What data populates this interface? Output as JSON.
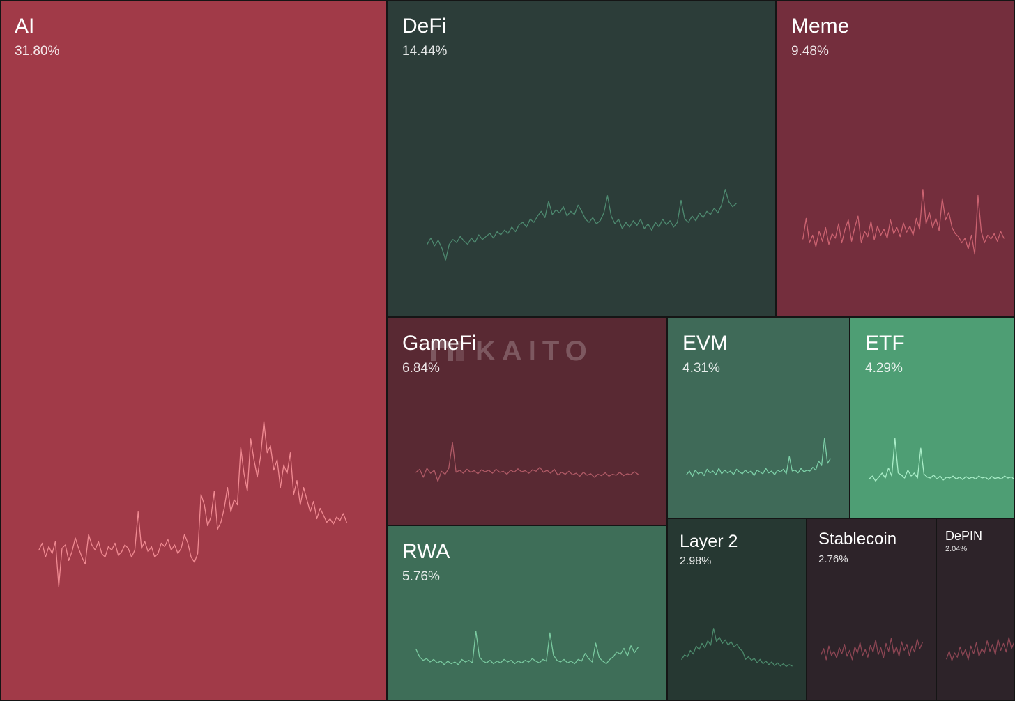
{
  "chart_data": {
    "type": "treemap",
    "title": "",
    "watermark": "KAITO",
    "series": [
      {
        "name": "AI",
        "percent": "31.80%",
        "value": 31.8,
        "trend": "down",
        "tile_color": "#a13a48",
        "line_color": "#f08a92",
        "sparkline": [
          0.26,
          0.3,
          0.22,
          0.28,
          0.24,
          0.31,
          0.05,
          0.27,
          0.29,
          0.2,
          0.25,
          0.33,
          0.27,
          0.22,
          0.18,
          0.35,
          0.29,
          0.26,
          0.31,
          0.24,
          0.22,
          0.28,
          0.26,
          0.3,
          0.23,
          0.25,
          0.29,
          0.27,
          0.22,
          0.26,
          0.48,
          0.27,
          0.31,
          0.25,
          0.28,
          0.22,
          0.24,
          0.3,
          0.28,
          0.32,
          0.26,
          0.29,
          0.24,
          0.27,
          0.35,
          0.3,
          0.22,
          0.19,
          0.24,
          0.58,
          0.52,
          0.4,
          0.45,
          0.6,
          0.38,
          0.42,
          0.5,
          0.62,
          0.48,
          0.55,
          0.52,
          0.85,
          0.7,
          0.6,
          0.9,
          0.78,
          0.68,
          0.8,
          1.0,
          0.82,
          0.86,
          0.72,
          0.78,
          0.62,
          0.75,
          0.7,
          0.82,
          0.58,
          0.66,
          0.52,
          0.62,
          0.55,
          0.48,
          0.54,
          0.44,
          0.5,
          0.46,
          0.42,
          0.44,
          0.41,
          0.45,
          0.43,
          0.47,
          0.42
        ]
      },
      {
        "name": "DeFi",
        "percent": "14.44%",
        "value": 14.44,
        "trend": "up",
        "tile_color": "#2c3d39",
        "line_color": "#4e8a70",
        "sparkline": [
          0.3,
          0.38,
          0.28,
          0.35,
          0.25,
          0.1,
          0.3,
          0.36,
          0.32,
          0.4,
          0.34,
          0.3,
          0.38,
          0.32,
          0.42,
          0.36,
          0.4,
          0.44,
          0.38,
          0.46,
          0.42,
          0.48,
          0.44,
          0.52,
          0.46,
          0.55,
          0.58,
          0.52,
          0.62,
          0.58,
          0.66,
          0.72,
          0.64,
          0.85,
          0.68,
          0.74,
          0.7,
          0.78,
          0.66,
          0.72,
          0.68,
          0.8,
          0.72,
          0.62,
          0.58,
          0.64,
          0.56,
          0.6,
          0.7,
          0.92,
          0.66,
          0.56,
          0.62,
          0.5,
          0.58,
          0.52,
          0.6,
          0.54,
          0.62,
          0.5,
          0.56,
          0.48,
          0.58,
          0.52,
          0.62,
          0.55,
          0.6,
          0.52,
          0.58,
          0.86,
          0.62,
          0.58,
          0.66,
          0.6,
          0.7,
          0.64,
          0.72,
          0.68,
          0.76,
          0.7,
          0.8,
          1.0,
          0.84,
          0.78,
          0.82
        ]
      },
      {
        "name": "Meme",
        "percent": "9.48%",
        "value": 9.48,
        "trend": "down",
        "tile_color": "#742e3d",
        "line_color": "#cc6371",
        "sparkline": [
          0.35,
          0.62,
          0.3,
          0.4,
          0.25,
          0.45,
          0.32,
          0.5,
          0.28,
          0.42,
          0.36,
          0.55,
          0.3,
          0.48,
          0.6,
          0.32,
          0.5,
          0.65,
          0.3,
          0.45,
          0.38,
          0.58,
          0.34,
          0.52,
          0.4,
          0.48,
          0.36,
          0.6,
          0.42,
          0.5,
          0.38,
          0.56,
          0.44,
          0.52,
          0.4,
          0.62,
          0.48,
          1.0,
          0.55,
          0.7,
          0.5,
          0.62,
          0.46,
          0.88,
          0.6,
          0.7,
          0.5,
          0.42,
          0.38,
          0.3,
          0.36,
          0.22,
          0.4,
          0.15,
          0.92,
          0.45,
          0.3,
          0.4,
          0.35,
          0.42,
          0.32,
          0.45,
          0.36
        ]
      },
      {
        "name": "GameFi",
        "percent": "6.84%",
        "value": 6.84,
        "trend": "down",
        "tile_color": "#592933",
        "line_color": "#b05a66",
        "sparkline": [
          0.4,
          0.46,
          0.3,
          0.48,
          0.38,
          0.44,
          0.22,
          0.42,
          0.36,
          0.48,
          1.0,
          0.4,
          0.44,
          0.38,
          0.46,
          0.4,
          0.43,
          0.37,
          0.45,
          0.41,
          0.44,
          0.38,
          0.46,
          0.4,
          0.42,
          0.36,
          0.44,
          0.4,
          0.47,
          0.41,
          0.43,
          0.38,
          0.45,
          0.42,
          0.5,
          0.4,
          0.44,
          0.38,
          0.46,
          0.34,
          0.4,
          0.36,
          0.42,
          0.35,
          0.38,
          0.32,
          0.4,
          0.34,
          0.37,
          0.3,
          0.36,
          0.33,
          0.39,
          0.32,
          0.36,
          0.34,
          0.4,
          0.33,
          0.37,
          0.35,
          0.41,
          0.36
        ]
      },
      {
        "name": "EVM",
        "percent": "4.31%",
        "value": 4.31,
        "trend": "up",
        "tile_color": "#3f6a58",
        "line_color": "#7dd0a8",
        "sparkline": [
          0.2,
          0.28,
          0.16,
          0.3,
          0.22,
          0.26,
          0.18,
          0.32,
          0.24,
          0.28,
          0.2,
          0.34,
          0.22,
          0.3,
          0.24,
          0.28,
          0.2,
          0.32,
          0.26,
          0.22,
          0.3,
          0.24,
          0.28,
          0.18,
          0.3,
          0.26,
          0.22,
          0.34,
          0.24,
          0.28,
          0.2,
          0.3,
          0.26,
          0.32,
          0.22,
          0.6,
          0.28,
          0.3,
          0.24,
          0.34,
          0.26,
          0.3,
          0.28,
          0.36,
          0.3,
          0.5,
          0.4,
          1.0,
          0.45,
          0.55
        ]
      },
      {
        "name": "ETF",
        "percent": "4.29%",
        "value": 4.29,
        "trend": "up",
        "tile_color": "#4e9e74",
        "line_color": "#a9edc8",
        "sparkline": [
          0.18,
          0.24,
          0.14,
          0.22,
          0.3,
          0.2,
          0.4,
          0.24,
          1.0,
          0.3,
          0.26,
          0.2,
          0.36,
          0.24,
          0.3,
          0.2,
          0.8,
          0.28,
          0.22,
          0.2,
          0.26,
          0.18,
          0.24,
          0.16,
          0.22,
          0.2,
          0.24,
          0.18,
          0.22,
          0.17,
          0.23,
          0.19,
          0.22,
          0.18,
          0.24,
          0.2,
          0.22,
          0.17,
          0.23,
          0.19,
          0.21,
          0.18,
          0.24,
          0.2,
          0.22,
          0.18
        ]
      },
      {
        "name": "RWA",
        "percent": "5.76%",
        "value": 5.76,
        "trend": "up",
        "tile_color": "#3e6e58",
        "line_color": "#7acaa0",
        "sparkline": [
          0.58,
          0.4,
          0.32,
          0.36,
          0.28,
          0.34,
          0.26,
          0.3,
          0.22,
          0.3,
          0.24,
          0.28,
          0.22,
          0.34,
          0.28,
          0.32,
          0.26,
          1.0,
          0.4,
          0.3,
          0.26,
          0.32,
          0.24,
          0.3,
          0.26,
          0.34,
          0.28,
          0.32,
          0.24,
          0.3,
          0.26,
          0.32,
          0.28,
          0.36,
          0.3,
          0.26,
          0.34,
          0.3,
          0.96,
          0.44,
          0.32,
          0.28,
          0.34,
          0.26,
          0.3,
          0.24,
          0.34,
          0.3,
          0.48,
          0.36,
          0.28,
          0.72,
          0.38,
          0.3,
          0.24,
          0.34,
          0.4,
          0.52,
          0.46,
          0.6,
          0.42,
          0.66,
          0.5,
          0.62
        ]
      },
      {
        "name": "Layer 2",
        "percent": "2.98%",
        "value": 2.98,
        "trend": "down",
        "tile_color": "#263832",
        "line_color": "#4c8a6c",
        "sparkline": [
          0.3,
          0.4,
          0.36,
          0.5,
          0.42,
          0.6,
          0.52,
          0.66,
          0.56,
          0.72,
          0.62,
          1.0,
          0.7,
          0.8,
          0.66,
          0.74,
          0.62,
          0.7,
          0.58,
          0.64,
          0.54,
          0.48,
          0.3,
          0.36,
          0.28,
          0.32,
          0.22,
          0.3,
          0.2,
          0.26,
          0.18,
          0.24,
          0.16,
          0.22,
          0.15,
          0.2,
          0.14,
          0.18,
          0.15
        ]
      },
      {
        "name": "Stablecoin",
        "percent": "2.76%",
        "value": 2.76,
        "trend": "down",
        "tile_color": "#2d2329",
        "line_color": "#8e4654",
        "sparkline": [
          0.42,
          0.56,
          0.3,
          0.62,
          0.4,
          0.5,
          0.34,
          0.58,
          0.44,
          0.66,
          0.38,
          0.52,
          0.3,
          0.6,
          0.46,
          0.7,
          0.4,
          0.54,
          0.36,
          0.64,
          0.48,
          0.76,
          0.42,
          0.58,
          0.34,
          0.68,
          0.5,
          0.8,
          0.44,
          0.6,
          0.38,
          0.72,
          0.52,
          0.66,
          0.4,
          0.62,
          0.48,
          0.78,
          0.56,
          0.7
        ]
      },
      {
        "name": "DePIN",
        "percent": "2.04%",
        "value": 2.04,
        "trend": "down",
        "tile_color": "#2d2329",
        "line_color": "#8e4654",
        "sparkline": [
          0.32,
          0.5,
          0.28,
          0.46,
          0.36,
          0.6,
          0.4,
          0.54,
          0.3,
          0.62,
          0.44,
          0.7,
          0.38,
          0.56,
          0.46,
          0.74,
          0.5,
          0.66,
          0.42,
          0.78,
          0.52,
          0.68,
          0.48,
          0.82,
          0.56,
          0.72
        ]
      }
    ]
  }
}
